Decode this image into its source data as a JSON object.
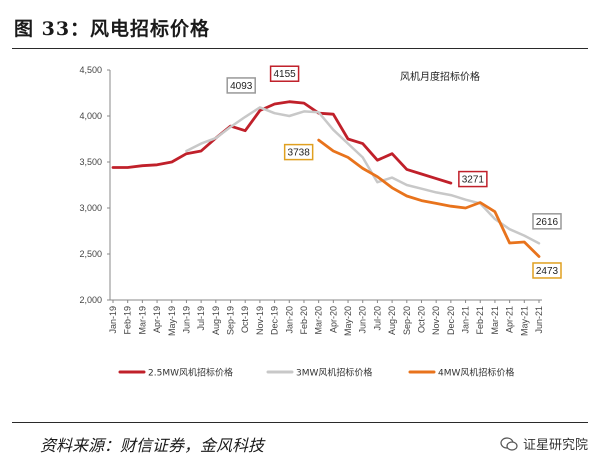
{
  "figure_title": "图 33：风电招标价格",
  "source_note": "资料来源：财信证券，金风科技",
  "watermark_text": "证星研究院",
  "chart_data": {
    "type": "line",
    "title": "风机月度招标价格",
    "xlabel": "",
    "ylabel": "",
    "ylim": [
      2000,
      4500
    ],
    "yticks": [
      "2,000",
      "2,500",
      "3,000",
      "3,500",
      "4,000",
      "4,500"
    ],
    "ytick_values": [
      2000,
      2500,
      3000,
      3500,
      4000,
      4500
    ],
    "categories": [
      "Jan-19",
      "Feb-19",
      "Mar-19",
      "Apr-19",
      "May-19",
      "Jun-19",
      "Jul-19",
      "Aug-19",
      "Sep-19",
      "Oct-19",
      "Nov-19",
      "Dec-19",
      "Jan-20",
      "Feb-20",
      "Mar-20",
      "Apr-20",
      "May-20",
      "Jun-20",
      "Jul-20",
      "Aug-20",
      "Sep-20",
      "Oct-20",
      "Nov-20",
      "Dec-20",
      "Jan-21",
      "Feb-21",
      "Mar-21",
      "Apr-21",
      "May-21",
      "Jun-21"
    ],
    "grid": false,
    "legend_position": "bottom",
    "series": [
      {
        "name": "2.5MW风机招标价格",
        "color": "#c0202a",
        "values": [
          3440,
          3440,
          3460,
          3470,
          3500,
          3590,
          3620,
          3760,
          3890,
          3840,
          4060,
          4130,
          4155,
          4140,
          4030,
          4020,
          3750,
          3700,
          3520,
          3590,
          3420,
          3370,
          3320,
          3271,
          null,
          null,
          null,
          null,
          null,
          null
        ]
      },
      {
        "name": "3MW风机招标价格",
        "color": "#c8c8c8",
        "values": [
          null,
          null,
          null,
          null,
          null,
          3620,
          3700,
          3760,
          3880,
          3990,
          4093,
          4030,
          4000,
          4050,
          4040,
          3850,
          3700,
          3550,
          3280,
          3330,
          3250,
          3210,
          3170,
          3140,
          3090,
          3050,
          2880,
          2770,
          2700,
          2616
        ]
      },
      {
        "name": "4MW风机招标价格",
        "color": "#e8731c",
        "values": [
          null,
          null,
          null,
          null,
          null,
          null,
          null,
          null,
          null,
          null,
          null,
          null,
          null,
          null,
          3738,
          3620,
          3550,
          3430,
          3340,
          3220,
          3130,
          3080,
          3050,
          3020,
          3000,
          3060,
          2960,
          2620,
          2630,
          2473
        ]
      }
    ],
    "annotations": [
      {
        "text": "4093",
        "series": "3MW风机招标价格",
        "x": "Oct-19",
        "y": 4093,
        "box_color": "#999999"
      },
      {
        "text": "4155",
        "series": "2.5MW风机招标价格",
        "x": "Dec-19",
        "y": 4155,
        "box_color": "#c0202a"
      },
      {
        "text": "3738",
        "series": "4MW风机招标价格",
        "x": "Mar-20",
        "y": 3738,
        "box_color": "#e0a020"
      },
      {
        "text": "3271",
        "series": "2.5MW风机招标价格",
        "x": "Dec-20",
        "y": 3271,
        "box_color": "#c0202a"
      },
      {
        "text": "2616",
        "series": "3MW风机招标价格",
        "x": "Jun-21",
        "y": 2616,
        "box_color": "#999999"
      },
      {
        "text": "2473",
        "series": "4MW风机招标价格",
        "x": "Jun-21",
        "y": 2473,
        "box_color": "#e0a020"
      }
    ]
  }
}
